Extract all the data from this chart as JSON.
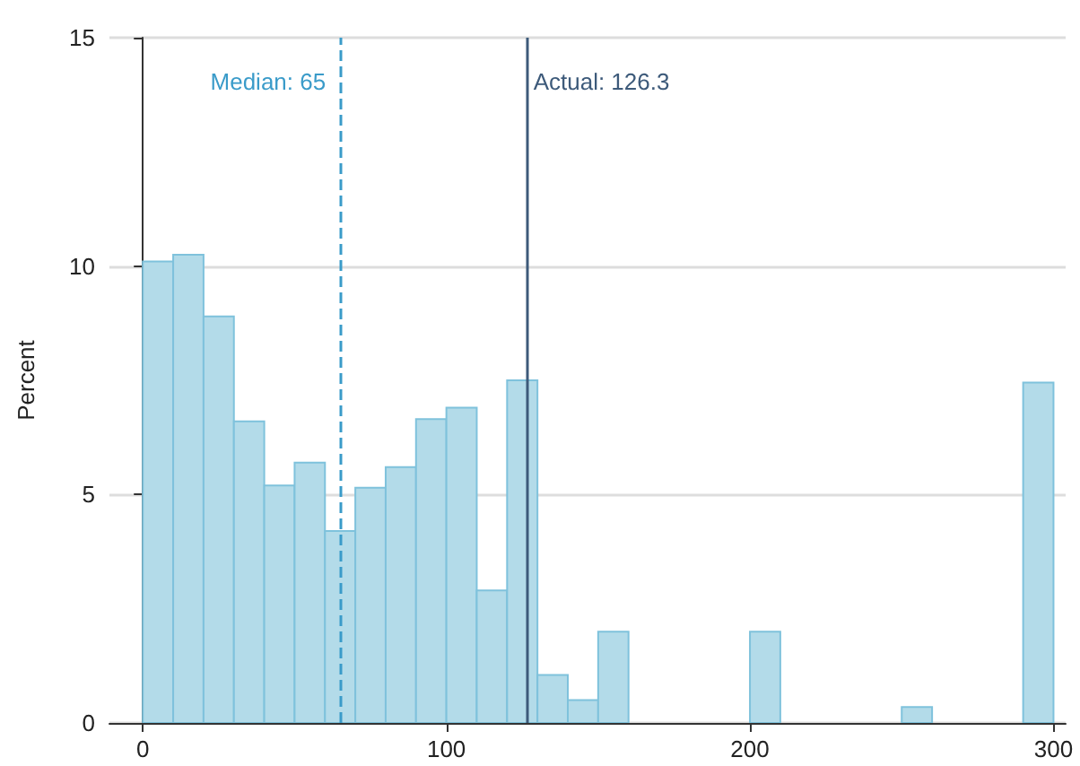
{
  "chart_data": {
    "type": "histogram",
    "ylabel": "Percent",
    "color": "#b3dbe9",
    "bins": [
      0,
      10,
      20,
      30,
      40,
      50,
      60,
      70,
      80,
      90,
      100,
      110,
      120,
      130,
      140,
      150,
      160,
      170,
      180,
      190,
      200,
      210,
      220,
      230,
      240,
      250,
      260,
      270,
      280,
      290,
      300
    ],
    "values": [
      10.1,
      10.25,
      8.9,
      6.6,
      5.2,
      5.7,
      4.2,
      5.15,
      5.6,
      6.65,
      6.9,
      2.9,
      7.5,
      1.05,
      0.5,
      2.0,
      0,
      null,
      null,
      0,
      2.0,
      0,
      0,
      0,
      0,
      0.35,
      0,
      0,
      0,
      7.45
    ],
    "xlim": [
      -11,
      304
    ],
    "ylim": [
      0,
      15
    ],
    "xticks": [
      0,
      100,
      200,
      300
    ],
    "yticks": [
      0,
      5,
      10,
      15
    ],
    "grid": "y",
    "ref_lines": [
      {
        "axis": "x",
        "value": 65,
        "label": "Median: 65",
        "color": "#3a9bc9",
        "line_style": "dashed"
      },
      {
        "axis": "x",
        "value": 126.3,
        "label": "Actual: 126.3",
        "color": "#3d5a7a",
        "line_style": "solid"
      }
    ]
  }
}
